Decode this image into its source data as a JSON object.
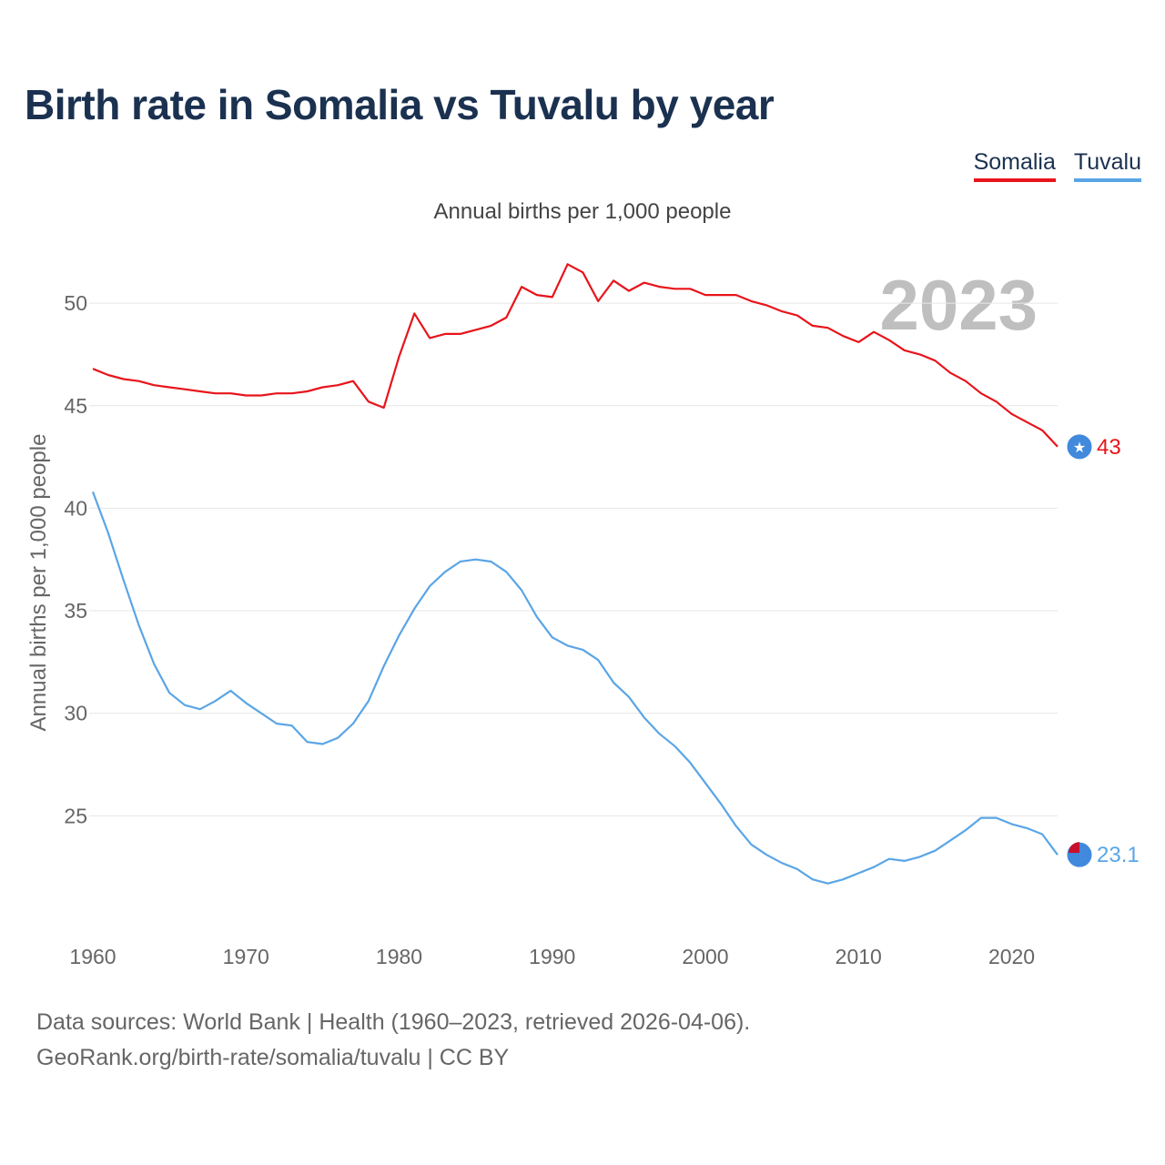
{
  "title": "Birth rate in Somalia vs Tuvalu by year",
  "footer": {
    "line1": "Data sources: World Bank | Health (1960–2023, retrieved 2026-04-06).",
    "line2": "GeoRank.org/birth-rate/somalia/tuvalu | CC BY"
  },
  "chart_data": {
    "type": "line",
    "title": "Birth rate in Somalia vs Tuvalu by year",
    "subtitle": "Annual births per 1,000 people",
    "xlabel": "",
    "ylabel": "Annual births per 1,000 people",
    "year_label": "2023",
    "xlim": [
      1960,
      2023
    ],
    "ylim": [
      20,
      54
    ],
    "x_ticks": [
      1960,
      1970,
      1980,
      1990,
      2000,
      2010,
      2020
    ],
    "y_ticks": [
      25,
      30,
      35,
      40,
      45,
      50
    ],
    "grid": true,
    "legend": "top-right",
    "x": [
      1960,
      1961,
      1962,
      1963,
      1964,
      1965,
      1966,
      1967,
      1968,
      1969,
      1970,
      1971,
      1972,
      1973,
      1974,
      1975,
      1976,
      1977,
      1978,
      1979,
      1980,
      1981,
      1982,
      1983,
      1984,
      1985,
      1986,
      1987,
      1988,
      1989,
      1990,
      1991,
      1992,
      1993,
      1994,
      1995,
      1996,
      1997,
      1998,
      1999,
      2000,
      2001,
      2002,
      2003,
      2004,
      2005,
      2006,
      2007,
      2008,
      2009,
      2010,
      2011,
      2012,
      2013,
      2014,
      2015,
      2016,
      2017,
      2018,
      2019,
      2020,
      2021,
      2022,
      2023
    ],
    "series": [
      {
        "name": "Somalia",
        "color": "#e8141b",
        "end_label": "43",
        "values": [
          46.8,
          46.5,
          46.3,
          46.2,
          46.0,
          45.9,
          45.8,
          45.7,
          45.6,
          45.6,
          45.5,
          45.5,
          45.6,
          45.6,
          45.7,
          45.9,
          46.0,
          46.2,
          45.2,
          44.9,
          47.4,
          49.5,
          48.3,
          48.5,
          48.5,
          48.7,
          48.9,
          49.3,
          50.8,
          50.4,
          50.3,
          51.9,
          51.5,
          50.1,
          51.1,
          50.6,
          51.0,
          50.8,
          50.7,
          50.7,
          50.4,
          50.4,
          50.4,
          50.1,
          49.9,
          49.6,
          49.4,
          48.9,
          48.8,
          48.4,
          48.1,
          48.6,
          48.2,
          47.7,
          47.5,
          47.2,
          46.6,
          46.2,
          45.6,
          45.2,
          44.6,
          44.2,
          43.8,
          43.0
        ]
      },
      {
        "name": "Tuvalu",
        "color": "#5aa5e6",
        "end_label": "23.1",
        "values": [
          40.8,
          38.8,
          36.5,
          34.3,
          32.4,
          31.0,
          30.4,
          30.2,
          30.6,
          31.1,
          30.5,
          30.0,
          29.5,
          29.4,
          28.6,
          28.5,
          28.8,
          29.5,
          30.6,
          32.3,
          33.8,
          35.1,
          36.2,
          36.9,
          37.4,
          37.5,
          37.4,
          36.9,
          36.0,
          34.7,
          33.7,
          33.3,
          33.1,
          32.6,
          31.5,
          30.8,
          29.8,
          29.0,
          28.4,
          27.6,
          26.6,
          25.6,
          24.5,
          23.6,
          23.1,
          22.7,
          22.4,
          21.9,
          21.7,
          21.9,
          22.2,
          22.5,
          22.9,
          22.8,
          23.0,
          23.3,
          23.8,
          24.3,
          24.9,
          24.9,
          24.6,
          24.4,
          24.1,
          23.1
        ]
      }
    ]
  }
}
